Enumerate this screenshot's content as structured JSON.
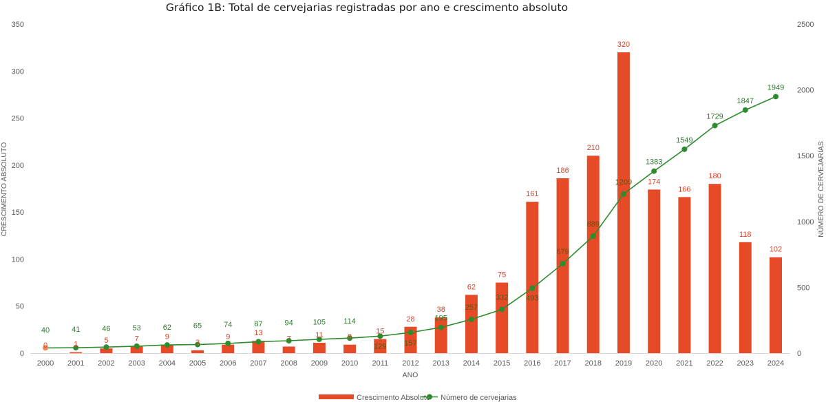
{
  "chart_data": {
    "type": "bar",
    "title": "Gráfico 1B: Total de cervejarias registradas por ano e crescimento absoluto",
    "xlabel": "ANO",
    "ylabel": "CRESCIMENTO ABSOLUTO",
    "y2label": "NÚMERO DE CERVEJARIAS",
    "ylim": [
      0,
      350
    ],
    "y2lim": [
      0,
      2500
    ],
    "yticks": [
      0,
      50,
      100,
      150,
      200,
      250,
      300,
      350
    ],
    "y2ticks": [
      0,
      500,
      1000,
      1500,
      2000,
      2500
    ],
    "grid": false,
    "legend_position": "bottom",
    "categories": [
      "2000",
      "2001",
      "2002",
      "2003",
      "2004",
      "2005",
      "2006",
      "2007",
      "2008",
      "2009",
      "2010",
      "2011",
      "2012",
      "2013",
      "2014",
      "2015",
      "2016",
      "2017",
      "2018",
      "2019",
      "2020",
      "2021",
      "2022",
      "2023",
      "2024"
    ],
    "series": [
      {
        "name": "Crescimento Absoluto",
        "type": "bar",
        "axis": "left",
        "color": "#e64a27",
        "values": [
          0,
          1,
          5,
          7,
          9,
          3,
          9,
          13,
          7,
          11,
          9,
          15,
          28,
          38,
          62,
          75,
          161,
          186,
          210,
          320,
          174,
          166,
          180,
          118,
          102
        ],
        "labels": [
          "0",
          "1",
          "5",
          "7",
          "9",
          "3",
          "9",
          "13",
          "7",
          "11",
          "9",
          "15",
          "28",
          "38",
          "62",
          "75",
          "161",
          "186",
          "210",
          "320",
          "174",
          "166",
          "180",
          "118",
          "102"
        ]
      },
      {
        "name": "Número de cervejarias",
        "type": "line",
        "axis": "right",
        "color": "#2e8b2e",
        "values": [
          40,
          41,
          46,
          53,
          62,
          65,
          74,
          87,
          94,
          105,
          114,
          129,
          157,
          195,
          257,
          332,
          493,
          679,
          889,
          1209,
          1383,
          1549,
          1729,
          1847,
          1949
        ]
      }
    ]
  }
}
